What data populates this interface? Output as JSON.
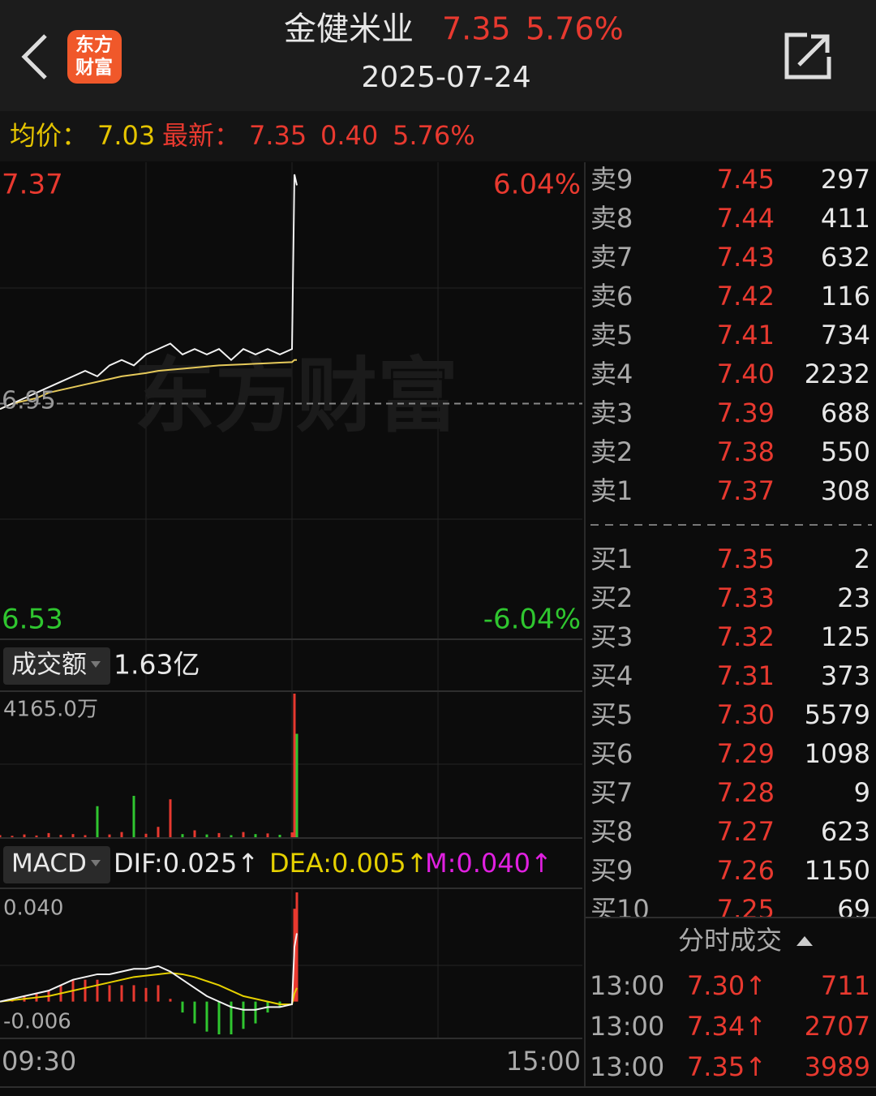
{
  "header": {
    "title": "金健米业",
    "price": "7.35",
    "change_pct": "5.76%",
    "date": "2025-07-24",
    "logo": [
      "东方",
      "财富"
    ]
  },
  "summary": {
    "avg_label": "均价：",
    "avg": "7.03",
    "latest_label": "最新：",
    "latest": "7.35",
    "change": "0.40",
    "change_pct": "5.76%"
  },
  "price_chart": {
    "max_label": "7.37",
    "min_label": "6.53",
    "max_pct": "6.04%",
    "min_pct": "-6.04%",
    "prev_close_label": "6.95",
    "watermark": "东方财富",
    "ylim": [
      6.53,
      7.37
    ],
    "prev_close": 6.95,
    "xlim": [
      0,
      240
    ],
    "x": [
      0,
      5,
      10,
      15,
      20,
      25,
      30,
      35,
      40,
      45,
      50,
      55,
      60,
      65,
      70,
      75,
      80,
      85,
      90,
      95,
      100,
      105,
      110,
      115,
      120,
      121,
      122
    ],
    "price": [
      6.94,
      6.95,
      6.96,
      6.97,
      6.98,
      6.99,
      7.0,
      7.01,
      7.0,
      7.02,
      7.03,
      7.02,
      7.04,
      7.05,
      7.06,
      7.04,
      7.05,
      7.04,
      7.05,
      7.03,
      7.05,
      7.04,
      7.05,
      7.04,
      7.05,
      7.37,
      7.35
    ],
    "avg": [
      6.94,
      6.95,
      6.955,
      6.96,
      6.97,
      6.975,
      6.98,
      6.985,
      6.99,
      6.995,
      7.0,
      7.003,
      7.006,
      7.01,
      7.012,
      7.014,
      7.016,
      7.018,
      7.02,
      7.021,
      7.022,
      7.023,
      7.024,
      7.025,
      7.026,
      7.03,
      7.03
    ]
  },
  "volume_chart": {
    "label": "成交额",
    "total": "1.63亿",
    "max_label": "4165.0万",
    "ylim": [
      0,
      4165
    ],
    "values": [
      60,
      40,
      80,
      50,
      120,
      70,
      90,
      60,
      900,
      80,
      150,
      1200,
      100,
      300,
      1100,
      90,
      200,
      80,
      120,
      60,
      150,
      90,
      110,
      70,
      140,
      4165,
      3000
    ]
  },
  "macd_chart": {
    "label": "MACD",
    "dif_label": "DIF:0.025↑",
    "dea_label": "DEA:0.005↑",
    "m_label": "M:0.040↑",
    "top_label": "0.040",
    "bottom_label": "-0.006",
    "ylim": [
      -0.012,
      0.04
    ],
    "dif": [
      0,
      0.001,
      0.002,
      0.003,
      0.004,
      0.006,
      0.008,
      0.009,
      0.01,
      0.01,
      0.011,
      0.012,
      0.012,
      0.013,
      0.011,
      0.008,
      0.005,
      0.002,
      0,
      -0.002,
      -0.003,
      -0.003,
      -0.002,
      -0.002,
      -0.001,
      0.02,
      0.025
    ],
    "dea": [
      0,
      0.0005,
      0.001,
      0.0015,
      0.002,
      0.003,
      0.004,
      0.005,
      0.006,
      0.007,
      0.008,
      0.009,
      0.0095,
      0.01,
      0.0105,
      0.01,
      0.009,
      0.0075,
      0.006,
      0.004,
      0.002,
      0.001,
      0,
      -0.001,
      -0.001,
      0.003,
      0.005
    ],
    "m": [
      0,
      0.001,
      0.002,
      0.003,
      0.004,
      0.006,
      0.008,
      0.008,
      0.008,
      0.006,
      0.006,
      0.006,
      0.005,
      0.006,
      0.001,
      -0.004,
      -0.008,
      -0.011,
      -0.012,
      -0.012,
      -0.01,
      -0.008,
      -0.004,
      -0.002,
      0,
      0.034,
      0.04
    ]
  },
  "time_axis": [
    "09:30",
    "15:00"
  ],
  "order_book": {
    "asks": [
      [
        "卖9",
        "7.45",
        "297"
      ],
      [
        "卖8",
        "7.44",
        "411"
      ],
      [
        "卖7",
        "7.43",
        "632"
      ],
      [
        "卖6",
        "7.42",
        "116"
      ],
      [
        "卖5",
        "7.41",
        "734"
      ],
      [
        "卖4",
        "7.40",
        "2232"
      ],
      [
        "卖3",
        "7.39",
        "688"
      ],
      [
        "卖2",
        "7.38",
        "550"
      ],
      [
        "卖1",
        "7.37",
        "308"
      ]
    ],
    "bids": [
      [
        "买1",
        "7.35",
        "2"
      ],
      [
        "买2",
        "7.33",
        "23"
      ],
      [
        "买3",
        "7.32",
        "125"
      ],
      [
        "买4",
        "7.31",
        "373"
      ],
      [
        "买5",
        "7.30",
        "5579"
      ],
      [
        "买6",
        "7.29",
        "1098"
      ],
      [
        "买7",
        "7.28",
        "9"
      ],
      [
        "买8",
        "7.27",
        "623"
      ],
      [
        "买9",
        "7.26",
        "1150"
      ],
      [
        "买10",
        "7.25",
        "69"
      ]
    ]
  },
  "trades": {
    "title": "分时成交",
    "rows": [
      [
        "13:00",
        "7.30↑",
        "711"
      ],
      [
        "13:00",
        "7.34↑",
        "2707"
      ],
      [
        "13:00",
        "7.35↑",
        "3989"
      ]
    ]
  }
}
